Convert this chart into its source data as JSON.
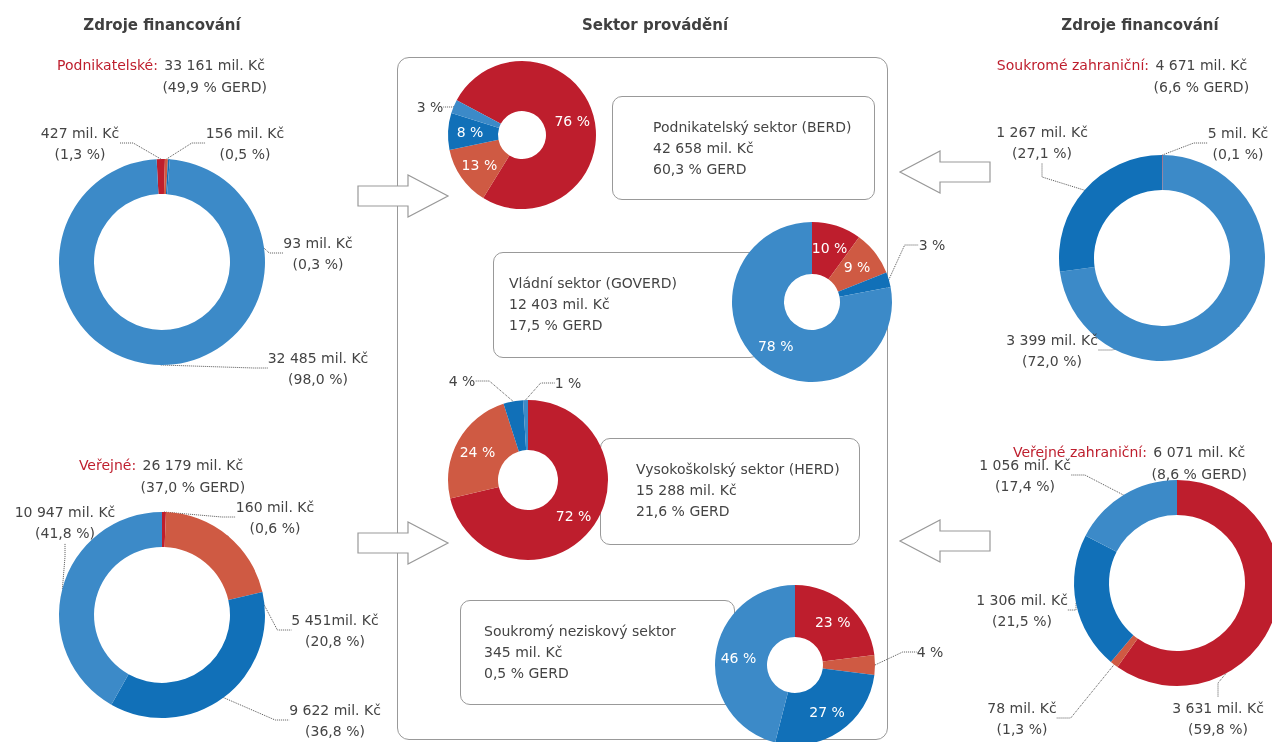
{
  "chart_data": [
    {
      "type": "donut",
      "annotations": [
        "Zdroje financování"
      ],
      "title": "Podnikatelské:",
      "subtitle": "33 161 mil. Kč\n(49,9 % GERD)",
      "categories": [
        null,
        null,
        null,
        null
      ],
      "values": [
        427,
        156,
        93,
        32485
      ],
      "colors": [
        "#be1e2d",
        "#cf5a43",
        "#1170b8",
        "#3c8ac8"
      ],
      "value_labels": [
        "427 mil. Kč\n(1,3 %)",
        "156 mil. Kč\n(0,5 %)",
        "93 mil. Kč\n(0,3 %)",
        "32 485 mil. Kč\n(98,0 %)"
      ]
    },
    {
      "type": "donut",
      "title": "Veřejné:",
      "subtitle": "26 179 mil. Kč\n(37,0 % GERD)",
      "categories": [
        null,
        null,
        null,
        null
      ],
      "values": [
        160,
        5451,
        9622,
        10947
      ],
      "colors": [
        "#be1e2d",
        "#cf5a43",
        "#1170b8",
        "#3c8ac8"
      ],
      "value_labels": [
        "160 mil. Kč\n(0,6 %)",
        "5 451mil. Kč\n(20,8 %)",
        "9 622 mil. Kč\n(36,8 %)",
        "10 947 mil. Kč\n(41,8 %)"
      ]
    },
    {
      "type": "donut",
      "annotations": [
        "Sektor provádění"
      ],
      "title": "Podnikatelský sektor (BERD)",
      "subtitle": "42 658 mil. Kč\n60,3 % GERD",
      "categories": [
        null,
        null,
        null,
        null
      ],
      "values": [
        76,
        13,
        8,
        3
      ],
      "colors": [
        "#be1e2d",
        "#cf5a43",
        "#1170b8",
        "#3c8ac8"
      ],
      "value_labels": [
        "76 %",
        "13 %",
        "8 %",
        "3 %"
      ]
    },
    {
      "type": "donut",
      "title": "Vládní sektor (GOVERD)",
      "subtitle": "12 403 mil. Kč\n17,5 % GERD",
      "categories": [
        null,
        null,
        null,
        null
      ],
      "values": [
        10,
        9,
        3,
        78
      ],
      "colors": [
        "#be1e2d",
        "#cf5a43",
        "#1170b8",
        "#3c8ac8"
      ],
      "value_labels": [
        "10 %",
        "9 %",
        "3 %",
        "78 %"
      ]
    },
    {
      "type": "donut",
      "title": "Vysokoškolský sektor (HERD)",
      "subtitle": "15 288 mil. Kč\n21,6 % GERD",
      "categories": [
        null,
        null,
        null,
        null
      ],
      "values": [
        72,
        24,
        4,
        1
      ],
      "colors": [
        "#be1e2d",
        "#cf5a43",
        "#1170b8",
        "#3c8ac8"
      ],
      "value_labels": [
        "72 %",
        "24 %",
        "4 %",
        "1 %"
      ]
    },
    {
      "type": "donut",
      "title": "Soukromý neziskový sektor",
      "subtitle": "345 mil. Kč\n0,5 % GERD",
      "categories": [
        null,
        null,
        null,
        null
      ],
      "values": [
        23,
        4,
        27,
        46
      ],
      "colors": [
        "#be1e2d",
        "#cf5a43",
        "#1170b8",
        "#3c8ac8"
      ],
      "value_labels": [
        "23 %",
        "4 %",
        "27 %",
        "46 %"
      ]
    },
    {
      "type": "donut",
      "annotations": [
        "Zdroje financování"
      ],
      "title": "Soukromé zahraniční:",
      "subtitle": "4 671 mil. Kč\n(6,6 % GERD)",
      "categories": [
        null,
        null,
        null
      ],
      "values": [
        5,
        3399,
        1267
      ],
      "colors": [
        "#be1e2d",
        "#3c8ac8",
        "#1170b8"
      ],
      "value_labels": [
        "5 mil. Kč\n(0,1 %)",
        "3 399 mil. Kč\n(72,0 %)",
        "1 267 mil. Kč\n(27,1 %)"
      ]
    },
    {
      "type": "donut",
      "title": "Veřejné zahraniční:",
      "subtitle": "6 071 mil. Kč\n(8,6 % GERD)",
      "categories": [
        null,
        null,
        null,
        null
      ],
      "values": [
        3631,
        78,
        1306,
        1056
      ],
      "colors": [
        "#be1e2d",
        "#cf5a43",
        "#1170b8",
        "#3c8ac8"
      ],
      "value_labels": [
        "3 631 mil. Kč\n(59,8 %)",
        "78 mil. Kč\n(1,3 %)",
        "1 306 mil. Kč\n(21,5 %)",
        "1 056 mil. Kč\n(17,4 %)"
      ]
    }
  ]
}
